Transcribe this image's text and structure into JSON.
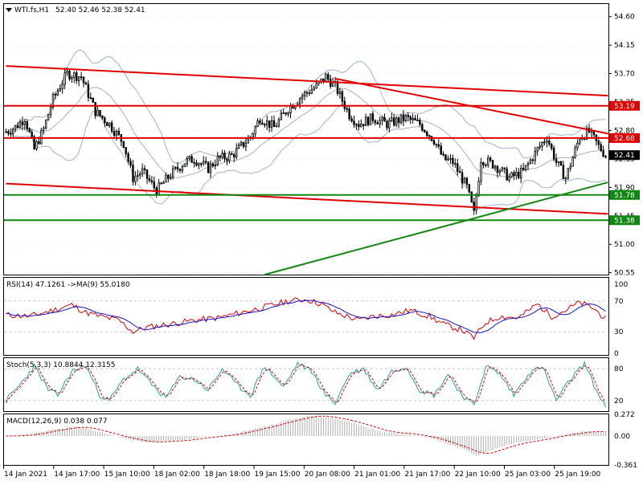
{
  "header": {
    "symbol": "WTI.fs,H1",
    "ohlc": "52.40 52.46 52.38 52.41"
  },
  "colors": {
    "bull": "#000000",
    "bear": "#000000",
    "bollinger": "#9fb2cf",
    "resistance": "#e00000",
    "support": "#118811",
    "rsi": "#dd0000",
    "rsi_ma": "#1515c8",
    "stoch_main": "#20a0a0",
    "stoch_signal": "#dd0000",
    "macd_hist": "#b0b0b0",
    "macd_signal": "#dd0000",
    "grid": "#c8c8c8",
    "price_box_red": "#e00000",
    "price_box_green": "#118811",
    "price_box_black": "#000000"
  },
  "price_axis": {
    "ticks": [
      "54.60",
      "54.15",
      "53.70",
      "53.25",
      "52.80",
      "52.35",
      "51.90",
      "51.45",
      "51.00",
      "50.55"
    ],
    "range": [
      50.52,
      54.8
    ]
  },
  "price_labels": [
    {
      "value": "53.19",
      "style": "red"
    },
    {
      "value": "52.68",
      "style": "red"
    },
    {
      "value": "52.41",
      "style": "black"
    },
    {
      "value": "51.78",
      "style": "green"
    },
    {
      "value": "51.38",
      "style": "green"
    }
  ],
  "time_axis": {
    "labels": [
      "14 Jan 2021",
      "14 Jan 17:00",
      "15 Jan 10:00",
      "18 Jan 02:00",
      "18 Jan 18:00",
      "19 Jan 15:00",
      "20 Jan 08:00",
      "21 Jan 01:00",
      "21 Jan 17:00",
      "22 Jan 10:00",
      "25 Jan 03:00",
      "25 Jan 19:00"
    ]
  },
  "rsi_panel": {
    "title": "RSI(14) 47.1261  ->MA(9) 55.0180",
    "ticks": [
      "100",
      "70",
      "30",
      "0"
    ],
    "levels": [
      70,
      30
    ]
  },
  "stoch_panel": {
    "title": "Stoch(5,3,3) 10.8844 12.3155",
    "ticks": [
      "80",
      "20"
    ],
    "levels": [
      80,
      20
    ]
  },
  "macd_panel": {
    "title": "MACD(12,26,9) 0.038 0.077",
    "ticks": [
      "0.272",
      "0.00",
      "-0.361"
    ],
    "range": [
      -0.361,
      0.272
    ]
  },
  "chart_data": {
    "type": "candlestick",
    "y_range": [
      50.52,
      54.8
    ],
    "anchors": [
      [
        0,
        52.78
      ],
      [
        4,
        52.85
      ],
      [
        8,
        53.0
      ],
      [
        12,
        52.5
      ],
      [
        16,
        52.82
      ],
      [
        20,
        53.3
      ],
      [
        26,
        53.7
      ],
      [
        32,
        53.65
      ],
      [
        38,
        53.1
      ],
      [
        44,
        52.9
      ],
      [
        50,
        52.6
      ],
      [
        54,
        52.05
      ],
      [
        58,
        52.15
      ],
      [
        64,
        51.85
      ],
      [
        70,
        52.1
      ],
      [
        76,
        52.3
      ],
      [
        80,
        52.35
      ],
      [
        86,
        52.2
      ],
      [
        90,
        52.35
      ],
      [
        96,
        52.4
      ],
      [
        100,
        52.55
      ],
      [
        104,
        52.7
      ],
      [
        108,
        53.0
      ],
      [
        114,
        52.85
      ],
      [
        120,
        53.15
      ],
      [
        126,
        53.35
      ],
      [
        132,
        53.5
      ],
      [
        136,
        53.65
      ],
      [
        140,
        53.5
      ],
      [
        146,
        53.05
      ],
      [
        150,
        52.9
      ],
      [
        156,
        53.0
      ],
      [
        162,
        52.9
      ],
      [
        170,
        53.0
      ],
      [
        176,
        52.9
      ],
      [
        182,
        52.65
      ],
      [
        186,
        52.35
      ],
      [
        190,
        52.3
      ],
      [
        196,
        51.9
      ],
      [
        199,
        51.48
      ],
      [
        202,
        52.35
      ],
      [
        208,
        52.25
      ],
      [
        214,
        52.05
      ],
      [
        220,
        52.15
      ],
      [
        226,
        52.5
      ],
      [
        230,
        52.7
      ],
      [
        234,
        52.3
      ],
      [
        238,
        52.05
      ],
      [
        244,
        52.7
      ],
      [
        248,
        52.78
      ],
      [
        252,
        52.55
      ],
      [
        255,
        52.41
      ]
    ],
    "bars": 256,
    "trend_lines": [
      {
        "kind": "resistance",
        "from": [
          0,
          53.82
        ],
        "to": [
          256,
          53.35
        ]
      },
      {
        "kind": "resistance",
        "from": [
          140,
          53.62
        ],
        "to": [
          256,
          52.75
        ]
      },
      {
        "kind": "resistance",
        "from": [
          0,
          51.96
        ],
        "to": [
          256,
          51.48
        ]
      },
      {
        "kind": "support",
        "from": [
          110,
          50.52
        ],
        "to": [
          256,
          51.98
        ]
      }
    ],
    "horizontal_lines": [
      {
        "kind": "resistance",
        "value": 53.19
      },
      {
        "kind": "resistance",
        "value": 52.68
      },
      {
        "kind": "support",
        "value": 51.78
      },
      {
        "kind": "support",
        "value": 51.38
      }
    ],
    "rsi_anchors": [
      [
        0,
        52
      ],
      [
        10,
        50
      ],
      [
        20,
        58
      ],
      [
        28,
        65
      ],
      [
        34,
        55
      ],
      [
        40,
        50
      ],
      [
        48,
        45
      ],
      [
        54,
        30
      ],
      [
        60,
        36
      ],
      [
        70,
        40
      ],
      [
        80,
        45
      ],
      [
        90,
        48
      ],
      [
        100,
        55
      ],
      [
        110,
        62
      ],
      [
        120,
        70
      ],
      [
        128,
        72
      ],
      [
        134,
        66
      ],
      [
        140,
        55
      ],
      [
        150,
        45
      ],
      [
        156,
        50
      ],
      [
        164,
        52
      ],
      [
        172,
        58
      ],
      [
        180,
        50
      ],
      [
        186,
        40
      ],
      [
        194,
        32
      ],
      [
        199,
        22
      ],
      [
        204,
        42
      ],
      [
        210,
        50
      ],
      [
        218,
        48
      ],
      [
        226,
        66
      ],
      [
        232,
        50
      ],
      [
        238,
        58
      ],
      [
        244,
        68
      ],
      [
        250,
        60
      ],
      [
        255,
        47
      ]
    ],
    "stoch_anchors": [
      [
        0,
        20
      ],
      [
        6,
        50
      ],
      [
        12,
        85
      ],
      [
        18,
        40
      ],
      [
        22,
        30
      ],
      [
        28,
        75
      ],
      [
        34,
        85
      ],
      [
        40,
        30
      ],
      [
        44,
        20
      ],
      [
        50,
        60
      ],
      [
        56,
        80
      ],
      [
        62,
        50
      ],
      [
        68,
        25
      ],
      [
        74,
        65
      ],
      [
        80,
        60
      ],
      [
        86,
        40
      ],
      [
        92,
        80
      ],
      [
        98,
        50
      ],
      [
        104,
        30
      ],
      [
        110,
        85
      ],
      [
        118,
        45
      ],
      [
        124,
        90
      ],
      [
        130,
        75
      ],
      [
        136,
        30
      ],
      [
        140,
        15
      ],
      [
        146,
        70
      ],
      [
        152,
        80
      ],
      [
        158,
        40
      ],
      [
        164,
        75
      ],
      [
        170,
        85
      ],
      [
        176,
        40
      ],
      [
        182,
        30
      ],
      [
        188,
        70
      ],
      [
        194,
        30
      ],
      [
        199,
        10
      ],
      [
        204,
        85
      ],
      [
        210,
        70
      ],
      [
        216,
        30
      ],
      [
        222,
        70
      ],
      [
        228,
        85
      ],
      [
        234,
        20
      ],
      [
        240,
        60
      ],
      [
        246,
        90
      ],
      [
        252,
        30
      ],
      [
        255,
        11
      ]
    ],
    "macd_anchors": [
      [
        0,
        0.0
      ],
      [
        10,
        0.02
      ],
      [
        20,
        0.08
      ],
      [
        30,
        0.12
      ],
      [
        40,
        0.05
      ],
      [
        50,
        -0.03
      ],
      [
        60,
        -0.08
      ],
      [
        70,
        -0.06
      ],
      [
        80,
        -0.03
      ],
      [
        90,
        0.0
      ],
      [
        100,
        0.05
      ],
      [
        110,
        0.12
      ],
      [
        120,
        0.2
      ],
      [
        130,
        0.26
      ],
      [
        140,
        0.22
      ],
      [
        150,
        0.14
      ],
      [
        160,
        0.05
      ],
      [
        170,
        0.03
      ],
      [
        180,
        -0.02
      ],
      [
        188,
        -0.1
      ],
      [
        196,
        -0.18
      ],
      [
        200,
        -0.24
      ],
      [
        206,
        -0.18
      ],
      [
        214,
        -0.1
      ],
      [
        222,
        -0.06
      ],
      [
        230,
        -0.02
      ],
      [
        238,
        0.02
      ],
      [
        246,
        0.06
      ],
      [
        255,
        0.05
      ]
    ]
  }
}
